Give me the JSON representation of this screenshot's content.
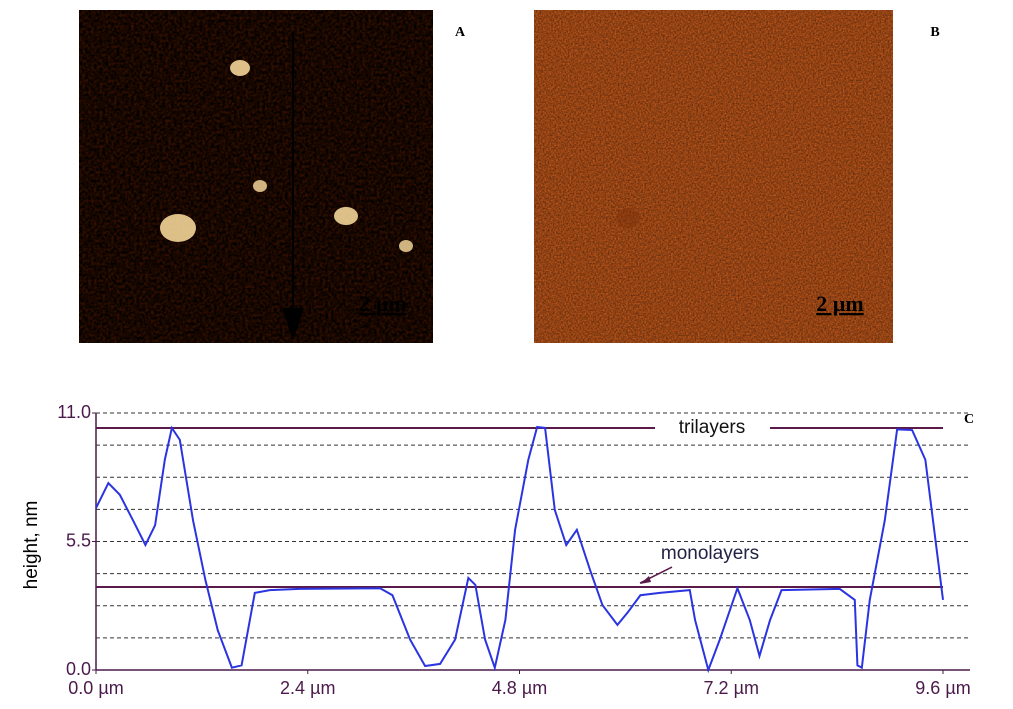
{
  "panels": {
    "a": {
      "label": "A",
      "scale": "2 µm"
    },
    "b": {
      "label": "B",
      "scale": "2 µm"
    }
  },
  "chart_data": {
    "type": "line",
    "panel_label": "C",
    "y_label": "height, nm",
    "x": [
      0.0,
      0.14,
      0.27,
      0.42,
      0.56,
      0.67,
      0.78,
      0.86,
      0.95,
      1.1,
      1.24,
      1.38,
      1.54,
      1.65,
      1.8,
      1.97,
      2.31,
      3.22,
      3.36,
      3.56,
      3.73,
      3.9,
      4.07,
      4.22,
      4.3,
      4.41,
      4.52,
      4.64,
      4.75,
      4.9,
      5.0,
      5.09,
      5.2,
      5.33,
      5.45,
      5.6,
      5.74,
      5.91,
      6.03,
      6.17,
      6.39,
      6.73,
      6.79,
      6.94,
      7.07,
      7.27,
      7.41,
      7.52,
      7.64,
      7.77,
      8.43,
      8.6,
      8.63,
      8.68,
      8.77,
      8.94,
      9.08,
      9.25,
      9.4,
      9.6
    ],
    "series": [
      {
        "color": "#2a34e0",
        "values": [
          6.93,
          8.0,
          7.5,
          6.4,
          5.35,
          6.2,
          9.0,
          10.36,
          9.85,
          6.4,
          3.85,
          1.7,
          0.1,
          0.2,
          3.3,
          3.42,
          3.47,
          3.5,
          3.2,
          1.3,
          0.17,
          0.26,
          1.3,
          3.94,
          3.64,
          1.3,
          0.1,
          2.14,
          6.0,
          9.0,
          10.4,
          10.36,
          6.85,
          5.35,
          6.0,
          4.28,
          2.78,
          1.93,
          2.48,
          3.2,
          3.3,
          3.42,
          2.14,
          0.0,
          1.3,
          3.5,
          2.14,
          0.6,
          2.14,
          3.42,
          3.47,
          3.0,
          0.2,
          0.1,
          3.0,
          6.4,
          10.3,
          10.27,
          9.0,
          3.0
        ]
      }
    ],
    "xlim": [
      0,
      9.6
    ],
    "xticks": [
      {
        "value": 0,
        "label": "0.0 µm"
      },
      {
        "value": 2.4,
        "label": "2.4 µm"
      },
      {
        "value": 4.8,
        "label": "4.8 µm"
      },
      {
        "value": 7.2,
        "label": "7.2 µm"
      },
      {
        "value": 9.6,
        "label": "9.6 µm"
      }
    ],
    "ylim": [
      0,
      11
    ],
    "yticks": [
      {
        "value": 0,
        "label": "0.0"
      },
      5.5,
      {
        "value": 11,
        "label": "11.0"
      }
    ],
    "ygrid": [
      1.375,
      2.75,
      4.125,
      5.5,
      6.875,
      8.25,
      9.625,
      11
    ],
    "annotations": [
      {
        "text": "trilayers",
        "y": 10.36
      },
      {
        "text": "monolayers",
        "y": 3.55
      }
    ],
    "line_color": "#5a1a4a"
  }
}
